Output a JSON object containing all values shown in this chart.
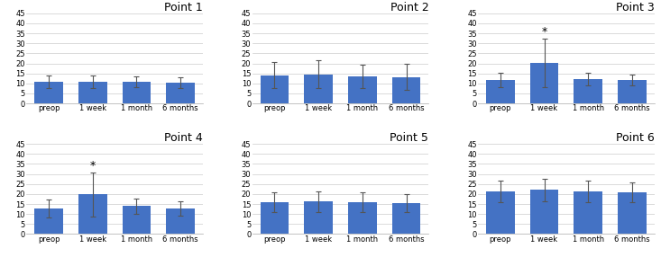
{
  "panels": [
    {
      "title": "Point 1",
      "values": [
        10.8,
        10.8,
        10.7,
        10.3
      ],
      "errors": [
        3.2,
        3.2,
        2.8,
        2.8
      ],
      "star": null,
      "ylim": [
        0,
        45
      ],
      "yticks": [
        0,
        5,
        10,
        15,
        20,
        25,
        30,
        35,
        40,
        45
      ]
    },
    {
      "title": "Point 2",
      "values": [
        14.0,
        14.5,
        13.5,
        13.2
      ],
      "errors": [
        6.5,
        7.0,
        6.0,
        6.5
      ],
      "star": null,
      "ylim": [
        0,
        45
      ],
      "yticks": [
        0,
        5,
        10,
        15,
        20,
        25,
        30,
        35,
        40,
        45
      ]
    },
    {
      "title": "Point 3",
      "values": [
        11.8,
        20.2,
        12.2,
        11.7
      ],
      "errors": [
        3.5,
        12.0,
        3.0,
        2.8
      ],
      "star": 1,
      "ylim": [
        0,
        45
      ],
      "yticks": [
        0,
        5,
        10,
        15,
        20,
        25,
        30,
        35,
        40,
        45
      ]
    },
    {
      "title": "Point 4",
      "values": [
        12.8,
        19.8,
        14.0,
        12.8
      ],
      "errors": [
        4.5,
        11.0,
        3.8,
        3.5
      ],
      "star": 1,
      "ylim": [
        0,
        45
      ],
      "yticks": [
        0,
        5,
        10,
        15,
        20,
        25,
        30,
        35,
        40,
        45
      ]
    },
    {
      "title": "Point 5",
      "values": [
        15.8,
        16.2,
        16.0,
        15.5
      ],
      "errors": [
        5.0,
        5.0,
        4.8,
        4.5
      ],
      "star": null,
      "ylim": [
        0,
        45
      ],
      "yticks": [
        0,
        5,
        10,
        15,
        20,
        25,
        30,
        35,
        40,
        45
      ]
    },
    {
      "title": "Point 6",
      "values": [
        21.2,
        22.0,
        21.2,
        20.8
      ],
      "errors": [
        5.5,
        5.5,
        5.5,
        4.8
      ],
      "star": null,
      "ylim": [
        0,
        45
      ],
      "yticks": [
        0,
        5,
        10,
        15,
        20,
        25,
        30,
        35,
        40,
        45
      ]
    }
  ],
  "xlabels": [
    "preop",
    "1 week",
    "1 month",
    "6 months"
  ],
  "bar_color": "#4472C4",
  "bar_width": 0.65,
  "error_color": "#555555",
  "star_color": "#000000",
  "title_fontsize": 9,
  "tick_fontsize": 6,
  "label_fontsize": 6,
  "figsize": [
    7.33,
    2.96
  ],
  "dpi": 100
}
